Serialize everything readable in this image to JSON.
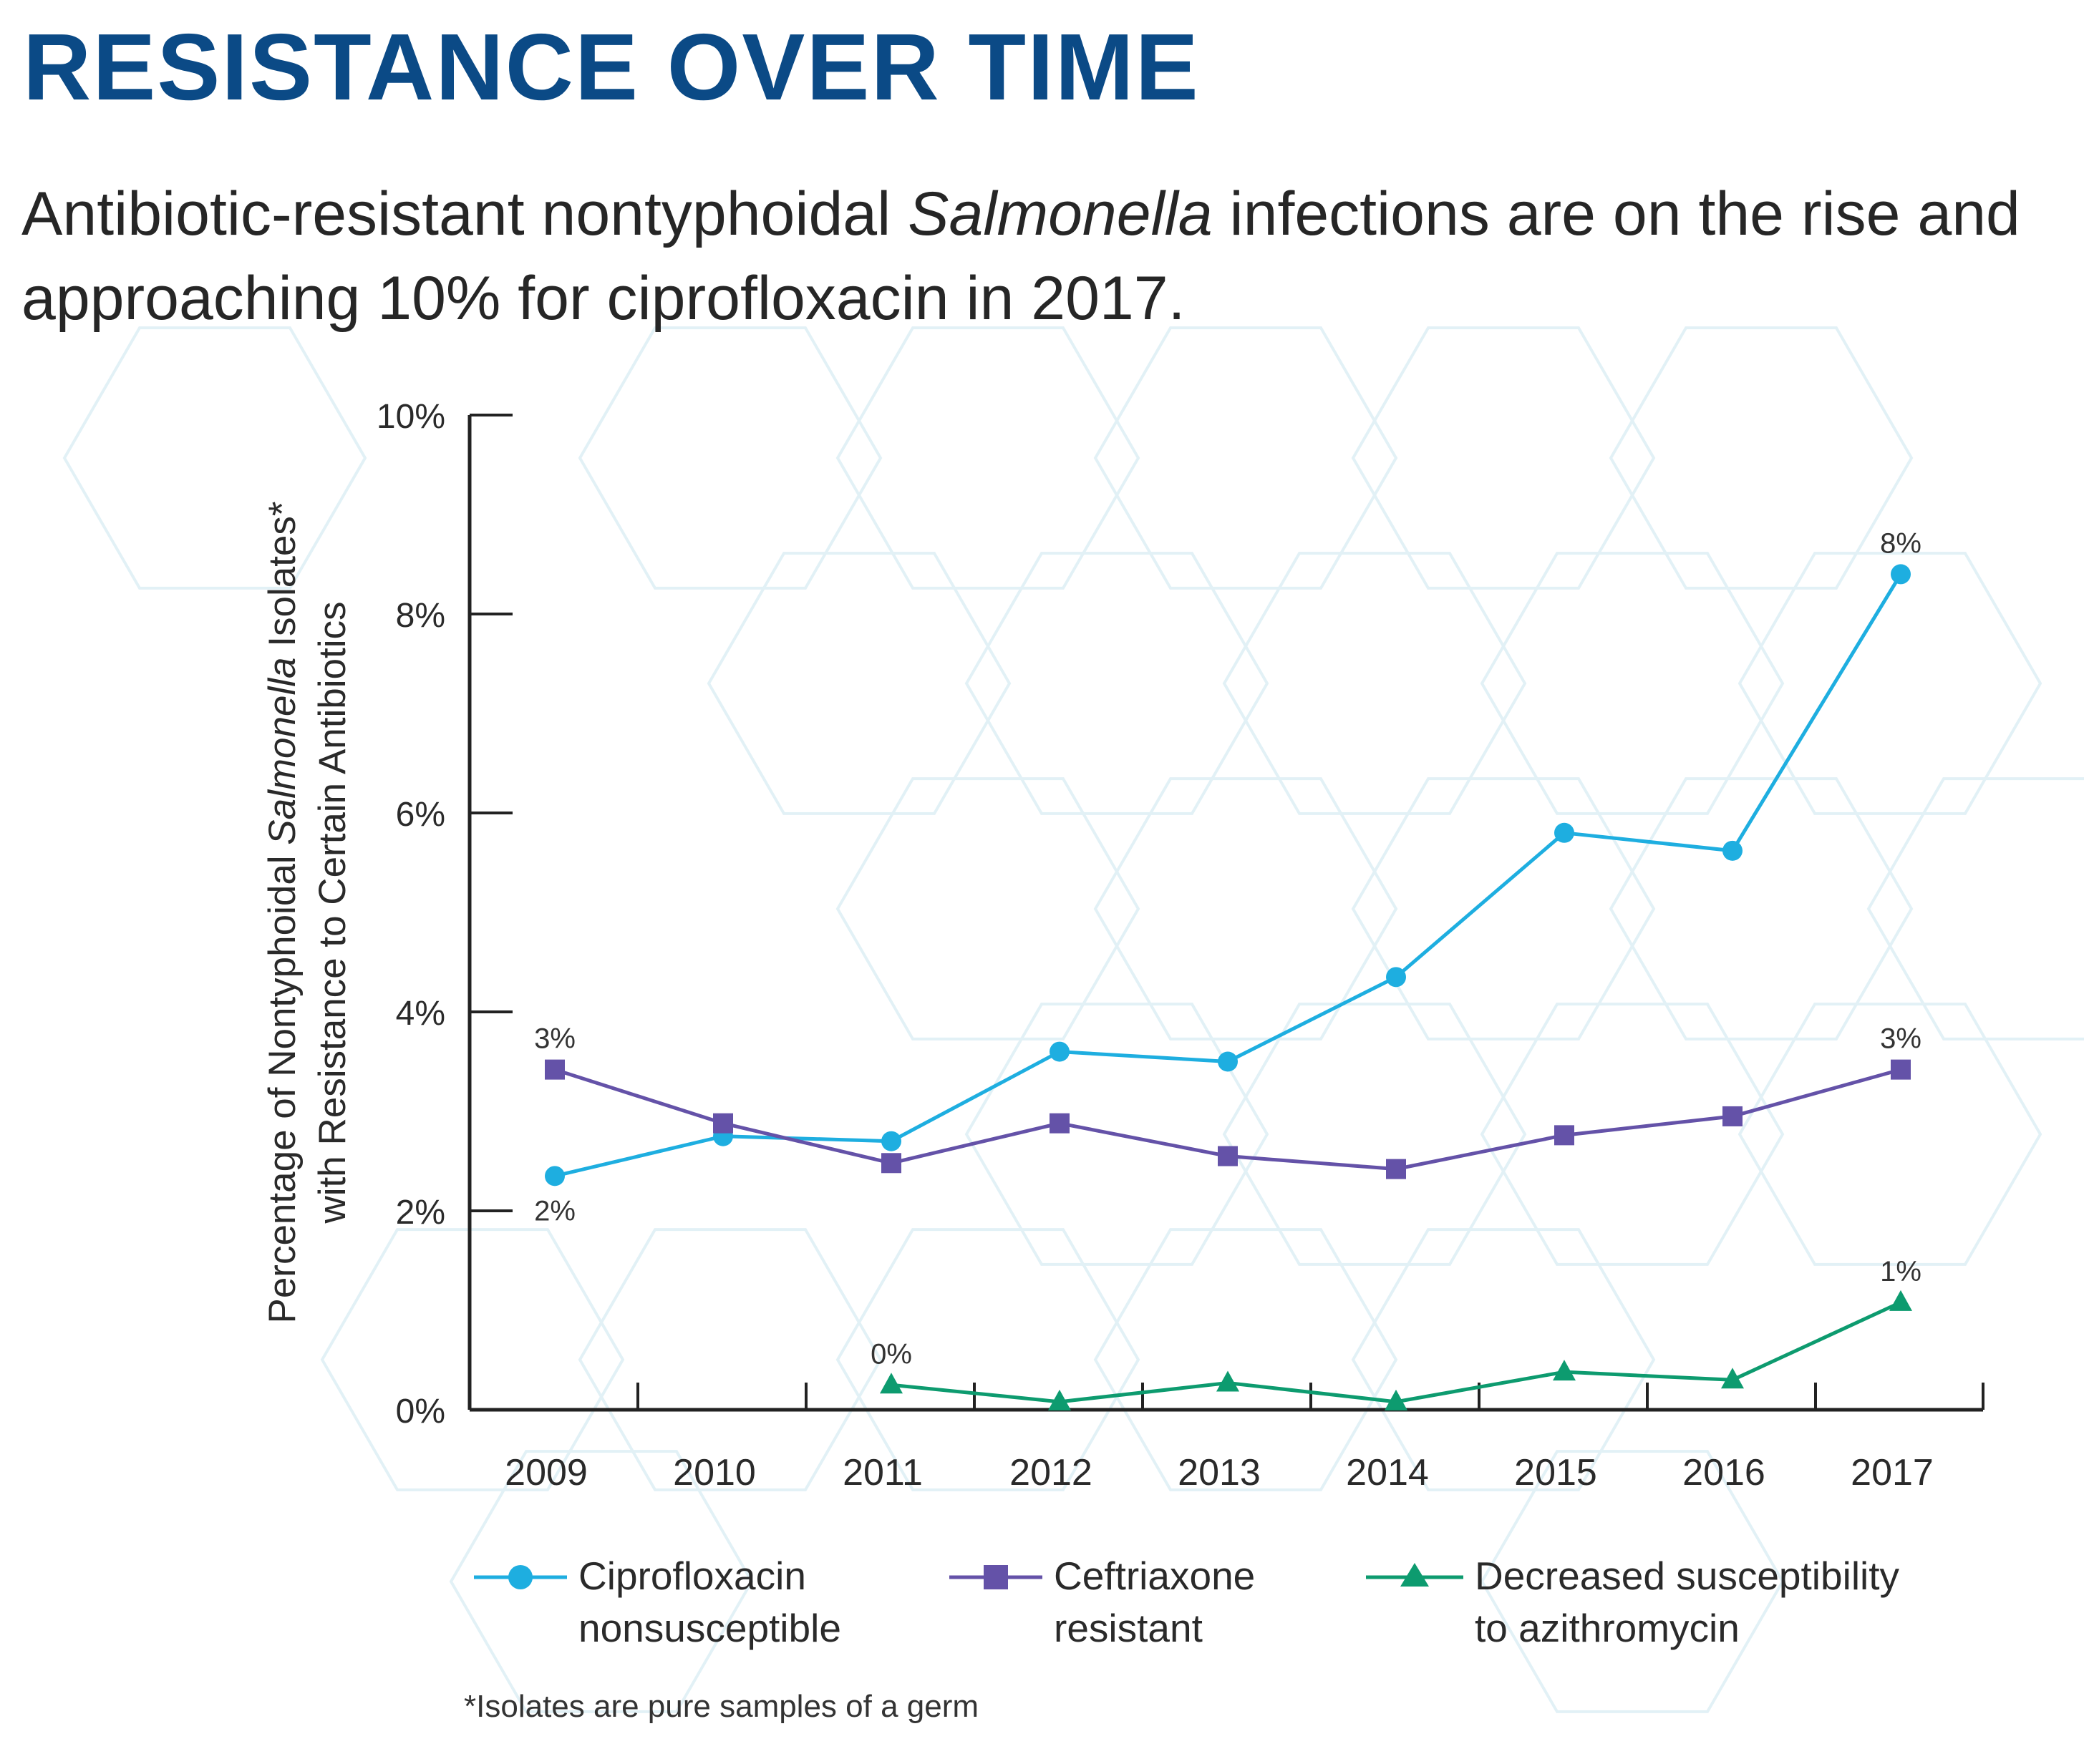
{
  "page": {
    "title": "RESISTANCE OVER TIME",
    "subtitle_pre": "Antibiotic-resistant nontyphoidal ",
    "subtitle_em": "Salmonella",
    "subtitle_post": " infections are on the rise and approaching 10% for ciprofloxacin in 2017.",
    "footnote": "*Isolates are pure samples of a germ"
  },
  "colors": {
    "title": "#0b4a86",
    "cipro": "#1eaee0",
    "ceft": "#6452a8",
    "azith": "#0d9b6f",
    "axis": "#222222",
    "hex": "#e2f1f6"
  },
  "chart_data": {
    "type": "line",
    "categories": [
      "2009",
      "2010",
      "2011",
      "2012",
      "2013",
      "2014",
      "2015",
      "2016",
      "2017"
    ],
    "ylim": [
      0,
      10
    ],
    "yticks": [
      {
        "value": 0,
        "label": "0%"
      },
      {
        "value": 2,
        "label": "2%"
      },
      {
        "value": 4,
        "label": "4%"
      },
      {
        "value": 6,
        "label": "6%"
      },
      {
        "value": 8,
        "label": "8%"
      },
      {
        "value": 10,
        "label": "10%"
      }
    ],
    "ylabel_line1_pre": "Percentage of  Nontyphoidal ",
    "ylabel_line1_em": "Salmonella",
    "ylabel_line1_post": " Isolates*",
    "ylabel_line2": "with Resistance to Certain Antibiotics",
    "series": [
      {
        "key": "cipro",
        "name_line1": "Ciprofloxacin",
        "name_line2": "nonsusceptible",
        "marker": "circle",
        "values": [
          2.35,
          2.75,
          2.7,
          3.6,
          3.5,
          4.35,
          5.8,
          5.62,
          8.4
        ],
        "labels": [
          {
            "index": 0,
            "text": "2%",
            "pos": "below"
          },
          {
            "index": 8,
            "text": "8%",
            "pos": "above"
          }
        ]
      },
      {
        "key": "ceft",
        "name_line1": "Ceftriaxone",
        "name_line2": "resistant",
        "marker": "square",
        "values": [
          3.42,
          2.88,
          2.48,
          2.88,
          2.55,
          2.42,
          2.76,
          2.95,
          3.42
        ],
        "labels": [
          {
            "index": 0,
            "text": "3%",
            "pos": "above"
          },
          {
            "index": 8,
            "text": "3%",
            "pos": "above"
          }
        ]
      },
      {
        "key": "azith",
        "name_line1": "Decreased susceptibility",
        "name_line2": "to azithromycin",
        "marker": "triangle",
        "values": [
          null,
          null,
          0.25,
          0.08,
          0.27,
          0.08,
          0.38,
          0.3,
          1.08
        ],
        "labels": [
          {
            "index": 2,
            "text": "0%",
            "pos": "above"
          },
          {
            "index": 8,
            "text": "1%",
            "pos": "above"
          }
        ]
      }
    ]
  }
}
